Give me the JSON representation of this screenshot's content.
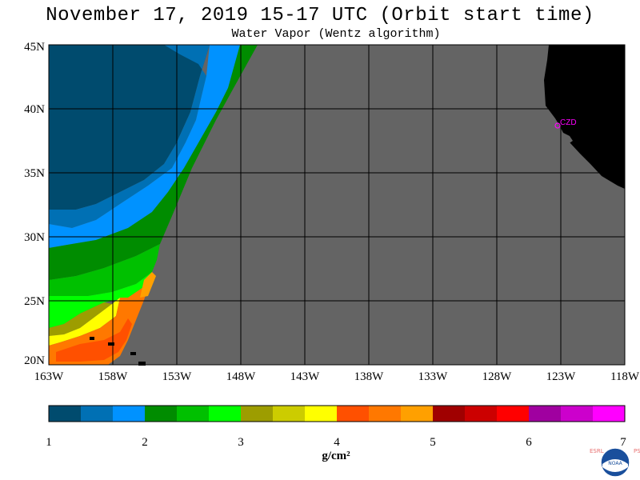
{
  "title": "November 17, 2019  15-17 UTC  (Orbit start time)",
  "subtitle": "Water Vapor (Wentz algorithm)",
  "lat_labels": [
    "45N",
    "40N",
    "35N",
    "30N",
    "25N",
    "20N"
  ],
  "lon_labels": [
    "163W",
    "158W",
    "153W",
    "148W",
    "143W",
    "138W",
    "133W",
    "128W",
    "123W",
    "118W"
  ],
  "city_marker": "CZD",
  "colorbar": {
    "colors": [
      "#004b6e",
      "#0070b4",
      "#0092ff",
      "#008c00",
      "#00c000",
      "#00ff00",
      "#9d9d00",
      "#cccc00",
      "#ffff00",
      "#ff5000",
      "#ff7800",
      "#ffa000",
      "#a00000",
      "#cc0000",
      "#ff0000",
      "#a000a0",
      "#cc00cc",
      "#ff00ff"
    ],
    "tick_labels": [
      "1",
      "2",
      "3",
      "4",
      "5",
      "6",
      "7"
    ],
    "units": "g/cm²"
  },
  "logo": {
    "left_text": "ESRL",
    "right_text": "PSD",
    "center_text": "NOAA"
  },
  "map_colors": {
    "no_data": "#646464",
    "land": "#000000",
    "grid": "#000000",
    "marker": "#ff00ff"
  }
}
